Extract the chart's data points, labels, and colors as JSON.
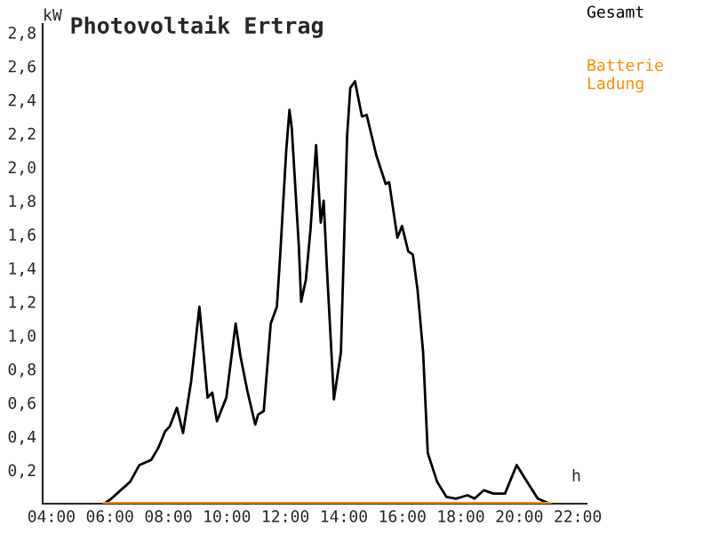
{
  "chart_data": {
    "type": "line",
    "title": "Photovoltaik Ertrag",
    "ylabel": "kW",
    "xlabel": "h",
    "xlim": [
      3.7,
      22.3
    ],
    "ylim": [
      0,
      2.85
    ],
    "xticks": [
      {
        "value": 4,
        "label": "04:00"
      },
      {
        "value": 6,
        "label": "06:00"
      },
      {
        "value": 8,
        "label": "08:00"
      },
      {
        "value": 10,
        "label": "10:00"
      },
      {
        "value": 12,
        "label": "12:00"
      },
      {
        "value": 14,
        "label": "14:00"
      },
      {
        "value": 16,
        "label": "16:00"
      },
      {
        "value": 18,
        "label": "18:00"
      },
      {
        "value": 20,
        "label": "20:00"
      },
      {
        "value": 22,
        "label": "22:00"
      }
    ],
    "yticks": [
      {
        "value": 0.2,
        "label": "0,2"
      },
      {
        "value": 0.4,
        "label": "0,4"
      },
      {
        "value": 0.6,
        "label": "0,6"
      },
      {
        "value": 0.8,
        "label": "0,8"
      },
      {
        "value": 1.0,
        "label": "1,0"
      },
      {
        "value": 1.2,
        "label": "1,2"
      },
      {
        "value": 1.4,
        "label": "1,4"
      },
      {
        "value": 1.6,
        "label": "1,6"
      },
      {
        "value": 1.8,
        "label": "1,8"
      },
      {
        "value": 2.0,
        "label": "2,0"
      },
      {
        "value": 2.2,
        "label": "2,2"
      },
      {
        "value": 2.4,
        "label": "2,4"
      },
      {
        "value": 2.6,
        "label": "2,6"
      },
      {
        "value": 2.8,
        "label": "2,8"
      }
    ],
    "legend": "top right",
    "line_style": "solid",
    "marker": "none",
    "series": [
      {
        "name": "Gesamt",
        "color": "#000000",
        "x": [
          5.81,
          6.05,
          6.69,
          7.01,
          7.41,
          7.65,
          7.89,
          8.05,
          8.29,
          8.5,
          8.78,
          9.06,
          9.34,
          9.5,
          9.66,
          9.98,
          10.3,
          10.46,
          10.7,
          10.97,
          11.07,
          11.26,
          11.5,
          11.71,
          11.82,
          12.03,
          12.14,
          12.22,
          12.46,
          12.54,
          12.7,
          12.86,
          13.05,
          13.21,
          13.31,
          13.42,
          13.66,
          13.9,
          14.11,
          14.22,
          14.38,
          14.62,
          14.78,
          15.11,
          15.43,
          15.55,
          15.83,
          15.99,
          16.2,
          16.36,
          16.52,
          16.71,
          16.87,
          17.19,
          17.51,
          17.83,
          18.23,
          18.47,
          18.79,
          19.11,
          19.51,
          19.91,
          20.23,
          20.63,
          21.04
        ],
        "values": [
          0,
          0.03,
          0.13,
          0.23,
          0.26,
          0.33,
          0.43,
          0.46,
          0.57,
          0.42,
          0.73,
          1.17,
          0.63,
          0.66,
          0.49,
          0.63,
          1.07,
          0.88,
          0.67,
          0.47,
          0.53,
          0.55,
          1.07,
          1.17,
          1.47,
          2.1,
          2.34,
          2.23,
          1.53,
          1.2,
          1.33,
          1.63,
          2.13,
          1.67,
          1.8,
          1.4,
          0.62,
          0.9,
          2.18,
          2.47,
          2.51,
          2.3,
          2.31,
          2.07,
          1.9,
          1.91,
          1.58,
          1.65,
          1.5,
          1.48,
          1.27,
          0.9,
          0.3,
          0.13,
          0.04,
          0.03,
          0.05,
          0.03,
          0.08,
          0.06,
          0.06,
          0.23,
          0.14,
          0.03,
          0
        ]
      },
      {
        "name": "Batterie Ladung",
        "color": "#ff8c00",
        "x": [
          5.81,
          21.04
        ],
        "values": [
          0,
          0
        ]
      }
    ]
  }
}
